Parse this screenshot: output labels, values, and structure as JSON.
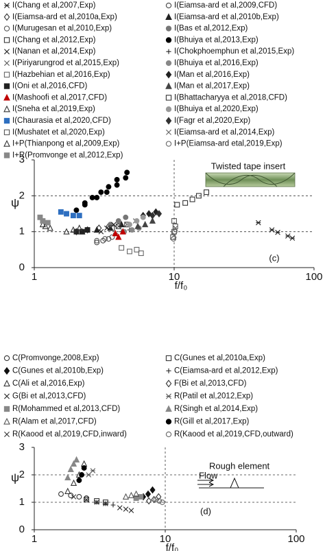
{
  "chart_data": [
    {
      "type": "scatter",
      "xscale": "log",
      "grid": "dashed",
      "xlabel": "f/f₀",
      "ylabel": "ψ",
      "xlim": [
        1,
        100
      ],
      "xticks": [
        1,
        10,
        100
      ],
      "ylim": [
        0,
        3
      ],
      "yticks": [
        0,
        1,
        2,
        3
      ],
      "annotations": [
        "Twisted tape insert",
        "(c)"
      ],
      "series": [
        {
          "name": "I(Chang et al,2007,Exp)",
          "marker": "star",
          "color": "#222",
          "filled": false,
          "x": [
            40,
            50,
            55,
            65,
            70
          ],
          "values": [
            1.25,
            1.05,
            0.98,
            0.88,
            0.82
          ]
        },
        {
          "name": "I(Eiamsa-ard et al,2009,CFD)",
          "marker": "circle",
          "color": "#444",
          "filled": false,
          "x": [
            2.8,
            3.1,
            3.4
          ],
          "values": [
            0.7,
            0.75,
            0.8
          ]
        },
        {
          "name": "I(Eiamsa-ard et al,2010a,Exp)",
          "marker": "diamond",
          "color": "#333",
          "filled": false,
          "x": [
            2.0,
            2.4,
            2.9,
            3.4
          ],
          "values": [
            1.0,
            1.05,
            1.1,
            1.15
          ]
        },
        {
          "name": "I(Eiamsa-ard et al,2010b,Exp)",
          "marker": "triangle",
          "color": "#222",
          "filled": true,
          "x": [
            2.2,
            2.8,
            3.5,
            4.2
          ],
          "values": [
            1.0,
            1.05,
            1.1,
            1.2
          ]
        },
        {
          "name": "I(Murugesan et al,2010,Exp)",
          "marker": "circle",
          "color": "#555",
          "filled": false,
          "x": [
            2.8,
            3.2,
            3.6
          ],
          "values": [
            0.75,
            0.8,
            0.85
          ]
        },
        {
          "name": "I(Bas et al,2012,Exp)",
          "marker": "circle",
          "color": "#777",
          "filled": true,
          "x": [
            3.5,
            4.0,
            4.5
          ],
          "values": [
            1.2,
            1.3,
            1.4
          ]
        },
        {
          "name": "I(Chang et al,2012,Exp)",
          "marker": "square",
          "color": "#333",
          "filled": false,
          "x": [
            3.6,
            4.0,
            4.6
          ],
          "values": [
            1.1,
            1.15,
            1.2
          ]
        },
        {
          "name": "I(Bhuiya et al,2013,Exp)",
          "marker": "circle",
          "color": "#000",
          "filled": true,
          "x": [
            2.0,
            2.3,
            2.6,
            3.0,
            3.4,
            3.9,
            4.6,
            2.3,
            2.8,
            3.3,
            3.9,
            4.5
          ],
          "values": [
            1.6,
            1.8,
            1.95,
            2.1,
            2.25,
            2.45,
            2.65,
            1.75,
            1.95,
            2.1,
            2.3,
            2.5
          ]
        },
        {
          "name": "I(Nanan et al,2014,Exp)",
          "marker": "x",
          "color": "#222",
          "filled": false,
          "x": [
            3.0,
            3.3,
            3.7
          ],
          "values": [
            1.0,
            1.1,
            1.2
          ]
        },
        {
          "name": "I(Chokphoemphun et al,2015,Exp)",
          "marker": "plus",
          "color": "#222",
          "filled": false,
          "x": [
            3.8,
            4.2,
            4.8
          ],
          "values": [
            0.95,
            1.0,
            1.05
          ]
        },
        {
          "name": "I(Piriyarungrod et al,2015,Exp)",
          "marker": "x",
          "color": "#555",
          "filled": false,
          "x": [
            4.0,
            4.6,
            5.3
          ],
          "values": [
            1.15,
            1.2,
            1.3
          ]
        },
        {
          "name": "I(Bhuiya et al,2016,Exp)",
          "marker": "circle",
          "color": "#888",
          "filled": true,
          "x": [
            4.4,
            5.0,
            5.6
          ],
          "values": [
            1.0,
            1.05,
            1.1
          ]
        },
        {
          "name": "I(Hazbehian et al,2016,Exp)",
          "marker": "square",
          "color": "#666",
          "filled": false,
          "x": [
            4.2,
            4.8,
            5.4,
            5.8
          ],
          "values": [
            0.55,
            0.45,
            0.5,
            0.4
          ]
        },
        {
          "name": "I(Man et al,2016,Exp)",
          "marker": "diamond",
          "color": "#222",
          "filled": true,
          "x": [
            6.0,
            6.6,
            7.4
          ],
          "values": [
            1.45,
            1.5,
            1.55
          ]
        },
        {
          "name": "I(Oni et al,2016,CFD)",
          "marker": "square",
          "color": "#222",
          "filled": true,
          "x": [
            2.0,
            2.2,
            2.4
          ],
          "values": [
            1.0,
            1.0,
            1.05
          ]
        },
        {
          "name": "I(Man et al,2017,Exp)",
          "marker": "triangle",
          "color": "#444",
          "filled": true,
          "x": [
            5.5,
            6.2,
            7.0
          ],
          "values": [
            1.15,
            1.2,
            1.3
          ]
        },
        {
          "name": "I(Mashoofi et al,2017,CFD)",
          "marker": "triangle",
          "color": "#c00000",
          "filled": true,
          "x": [
            3.8,
            4.0,
            4.3
          ],
          "values": [
            0.95,
            0.85,
            1.0
          ]
        },
        {
          "name": "I(Bhattacharyya et al,2018,CFD)",
          "marker": "square",
          "color": "#333",
          "filled": false,
          "x": [
            10.5,
            12,
            13.5,
            15,
            17
          ],
          "values": [
            1.75,
            1.8,
            1.9,
            2.0,
            2.1
          ]
        },
        {
          "name": "I(Sneha et al,2019,Exp)",
          "marker": "triangle",
          "color": "#333",
          "filled": false,
          "x": [
            1.7,
            1.9,
            2.1
          ],
          "values": [
            1.0,
            1.05,
            1.1
          ]
        },
        {
          "name": "I(Bhuiya et al,2020,Exp)",
          "marker": "circle",
          "color": "#999",
          "filled": true,
          "x": [
            4.8,
            5.4,
            6.0
          ],
          "values": [
            1.2,
            1.3,
            1.4
          ]
        },
        {
          "name": "I(Chaurasia et al,2020,CFD)",
          "marker": "square",
          "color": "#2e6fc0",
          "filled": true,
          "x": [
            1.55,
            1.7,
            1.9,
            2.1
          ],
          "values": [
            1.55,
            1.5,
            1.45,
            1.45
          ]
        },
        {
          "name": "I(Fagr et al,2020,Exp)",
          "marker": "diamond",
          "color": "#333",
          "filled": true,
          "x": [
            7.0,
            7.8
          ],
          "values": [
            1.45,
            1.5
          ]
        },
        {
          "name": "I(Mushatet et al,2020,Exp)",
          "marker": "square",
          "color": "#555",
          "filled": false,
          "x": [
            9.8,
            10.0,
            10.2,
            10.0
          ],
          "values": [
            0.85,
            1.0,
            1.15,
            1.3
          ]
        },
        {
          "name": "I(Eiamsa-ard et al,2014,Exp)",
          "marker": "x",
          "color": "#666",
          "filled": false,
          "x": [
            10,
            10.2
          ],
          "values": [
            0.9,
            1.1
          ]
        },
        {
          "name": "I+P(Thianpong et al,2009,Exp)",
          "marker": "triangle",
          "color": "#333",
          "filled": false,
          "x": [
            1.15,
            1.2,
            1.3
          ],
          "values": [
            1.2,
            1.15,
            1.1
          ]
        },
        {
          "name": "I+P(Eiamsa-ard etal,2019,Exp)",
          "marker": "circle",
          "color": "#666",
          "filled": false,
          "x": [
            9.9,
            10.1
          ],
          "values": [
            0.8,
            1.0
          ]
        },
        {
          "name": "I+R(Promvonge et al,2012,Exp)",
          "marker": "square",
          "color": "#888",
          "filled": true,
          "x": [
            1.1,
            1.15,
            1.25
          ],
          "values": [
            1.4,
            1.3,
            1.25
          ]
        }
      ]
    },
    {
      "type": "scatter",
      "xscale": "log",
      "grid": "dashed",
      "xlabel": "f/f₀",
      "ylabel": "ψ",
      "xlim": [
        1,
        100
      ],
      "xticks": [
        1,
        10,
        100
      ],
      "ylim": [
        0,
        3
      ],
      "yticks": [
        0,
        1,
        2,
        3
      ],
      "annotations": [
        "Flow",
        "Rough element",
        "(d)"
      ],
      "series": [
        {
          "name": "C(Promvonge,2008,Exp)",
          "marker": "circle",
          "color": "#333",
          "filled": false,
          "x": [
            1.6,
            1.9,
            2.2,
            2.5
          ],
          "values": [
            1.3,
            1.25,
            1.2,
            1.15
          ]
        },
        {
          "name": "C(Gunes et al,2010a,Exp)",
          "marker": "square",
          "color": "#333",
          "filled": false,
          "x": [
            2.5,
            3.0,
            3.5
          ],
          "values": [
            1.1,
            1.05,
            1.0
          ]
        },
        {
          "name": "C(Gunes et al,2010b,Exp)",
          "marker": "diamond",
          "color": "#111",
          "filled": true,
          "x": [
            6.8,
            7.4,
            8.0
          ],
          "values": [
            1.2,
            1.3,
            1.45
          ]
        },
        {
          "name": "C(Eiamsa-ard et al,2012,Exp)",
          "marker": "plus",
          "color": "#222",
          "filled": false,
          "x": [
            3.0,
            3.5,
            4.0
          ],
          "values": [
            1.0,
            0.95,
            0.9
          ]
        },
        {
          "name": "C(Ali et al,2016,Exp)",
          "marker": "triangle",
          "color": "#333",
          "filled": false,
          "x": [
            1.8,
            2.0,
            2.2,
            2.4
          ],
          "values": [
            1.4,
            1.7,
            2.0,
            2.4
          ]
        },
        {
          "name": "F(Bi et al,2013,CFD)",
          "marker": "diamond",
          "color": "#333",
          "filled": false,
          "x": [
            7.5,
            8.2,
            8.9
          ],
          "values": [
            1.05,
            1.1,
            1.2
          ]
        },
        {
          "name": "G(Bi et al,2013,CFD)",
          "marker": "x",
          "color": "#222",
          "filled": false,
          "x": [
            4.5,
            5.0,
            5.5
          ],
          "values": [
            0.8,
            0.75,
            0.7
          ]
        },
        {
          "name": "R(Patil et al,2012,Exp)",
          "marker": "star",
          "color": "#555",
          "filled": false,
          "x": [
            2.6,
            2.8
          ],
          "values": [
            2.0,
            2.15
          ]
        },
        {
          "name": "R(Mohammed et al,2013,CFD)",
          "marker": "square",
          "color": "#888",
          "filled": true,
          "x": [
            6.0,
            6.5
          ],
          "values": [
            1.15,
            1.2
          ]
        },
        {
          "name": "R(Singh et al,2014,Exp)",
          "marker": "triangle",
          "color": "#888",
          "filled": true,
          "x": [
            1.8,
            1.9,
            2.0,
            2.1
          ],
          "values": [
            1.9,
            2.2,
            2.4,
            2.55
          ]
        },
        {
          "name": "R(Alam et al,2017,CFD)",
          "marker": "triangle",
          "color": "#555",
          "filled": false,
          "x": [
            5.0,
            5.5,
            6.0
          ],
          "values": [
            1.2,
            1.25,
            1.3
          ]
        },
        {
          "name": "R(Gill et al,2017,Exp)",
          "marker": "circle",
          "color": "#000",
          "filled": true,
          "x": [
            2.2,
            2.3,
            2.4
          ],
          "values": [
            1.8,
            2.0,
            2.25
          ]
        },
        {
          "name": "R(Kaood et al,2019,CFD,inward)",
          "marker": "x",
          "color": "#333",
          "filled": false,
          "x": [
            2.0,
            2.5,
            3.0,
            3.5
          ],
          "values": [
            1.2,
            1.1,
            1.0,
            0.95
          ]
        },
        {
          "name": "R(Kaood et al,2019,CFD,outward)",
          "marker": "circle",
          "color": "#666",
          "filled": false,
          "x": [
            8.5,
            9.0,
            9.5
          ],
          "values": [
            1.1,
            1.05,
            1.0
          ]
        }
      ]
    }
  ]
}
